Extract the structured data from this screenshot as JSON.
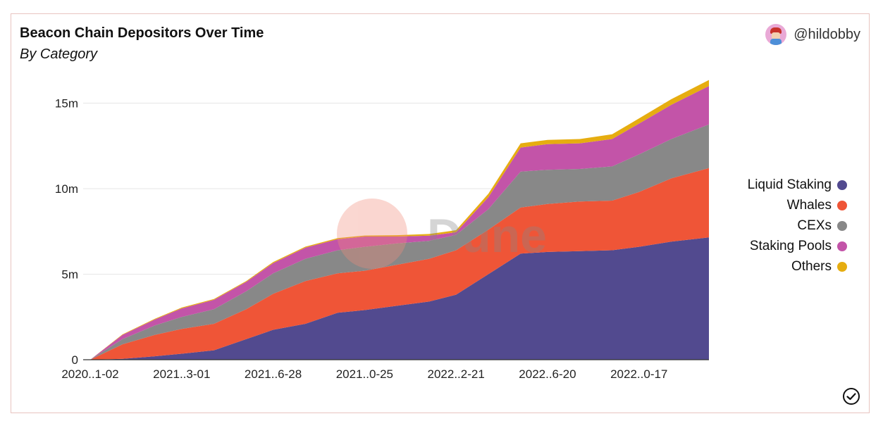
{
  "header": {
    "title": "Beacon Chain Depositors Over Time",
    "subtitle": "By Category",
    "author": "@hildobby"
  },
  "watermark": "Dune",
  "colors": {
    "liquid_staking": "#524a8f",
    "whales": "#ef5537",
    "cexs": "#888888",
    "staking_pools": "#c354a8",
    "others": "#e6ad10"
  },
  "chart_data": {
    "type": "area",
    "stacked": true,
    "title": "Beacon Chain Depositors Over Time",
    "subtitle": "By Category",
    "xlabel": "",
    "ylabel": "",
    "ylim": [
      0,
      16500000
    ],
    "yticks": [
      0,
      5000000,
      10000000,
      15000000
    ],
    "ytick_labels": [
      "0",
      "5m",
      "10m",
      "15m"
    ],
    "xtick_labels": [
      "2020..1-02",
      "2021..3-01",
      "2021..6-28",
      "2021..0-25",
      "2022..2-21",
      "2022..6-20",
      "2022..0-17"
    ],
    "grid": true,
    "legend_position": "right",
    "x": [
      "2020-11-02",
      "2020-12-14",
      "2021-01-25",
      "2021-03-01",
      "2021-04-12",
      "2021-05-24",
      "2021-06-28",
      "2021-08-09",
      "2021-09-20",
      "2021-10-25",
      "2021-12-06",
      "2022-01-17",
      "2022-02-21",
      "2022-04-04",
      "2022-05-16",
      "2022-06-20",
      "2022-08-01",
      "2022-09-12",
      "2022-10-17",
      "2022-11-28",
      "2023-01-16"
    ],
    "series": [
      {
        "name": "Liquid Staking",
        "values": [
          0,
          50000,
          200000,
          350000,
          550000,
          1200000,
          1750000,
          2100000,
          2750000,
          2900000,
          3150000,
          3400000,
          3800000,
          5000000,
          6200000,
          6300000,
          6350000,
          6400000,
          6600000,
          6900000,
          7150000
        ]
      },
      {
        "name": "Whales",
        "values": [
          0,
          850000,
          1250000,
          1450000,
          1550000,
          1750000,
          2100000,
          2500000,
          2300000,
          2300000,
          2400000,
          2500000,
          2600000,
          2600000,
          2700000,
          2800000,
          2900000,
          2900000,
          3200000,
          3700000,
          4050000
        ]
      },
      {
        "name": "CEXs",
        "values": [
          0,
          300000,
          550000,
          700000,
          850000,
          1050000,
          1200000,
          1300000,
          1350000,
          1400000,
          1250000,
          1050000,
          900000,
          1200000,
          2100000,
          2000000,
          1900000,
          2000000,
          2200000,
          2300000,
          2550000
        ]
      },
      {
        "name": "Staking Pools",
        "values": [
          0,
          250000,
          350000,
          500000,
          550000,
          550000,
          600000,
          650000,
          650000,
          600000,
          400000,
          300000,
          150000,
          700000,
          1400000,
          1500000,
          1500000,
          1600000,
          1800000,
          2000000,
          2250000
        ]
      },
      {
        "name": "Others",
        "values": [
          0,
          30000,
          40000,
          50000,
          50000,
          50000,
          60000,
          60000,
          60000,
          60000,
          80000,
          100000,
          120000,
          200000,
          250000,
          250000,
          250000,
          280000,
          300000,
          330000,
          350000
        ]
      }
    ]
  }
}
